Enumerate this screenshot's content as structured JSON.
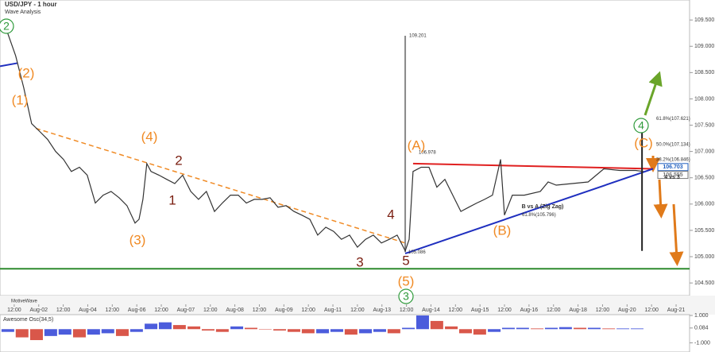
{
  "chart_data": {
    "type": "line",
    "title": "USD/JPY - 1 hour",
    "subtitle": "Wave Analysis",
    "footer": "MotiveWave",
    "xlim": [
      -0.58,
      27.55
    ],
    "xticks": [
      {
        "value": 0,
        "label": "12:00"
      },
      {
        "value": 1,
        "label": "Aug-02"
      },
      {
        "value": 2,
        "label": "12:00"
      },
      {
        "value": 3,
        "label": "Aug-04"
      },
      {
        "value": 4,
        "label": "12:00"
      },
      {
        "value": 5,
        "label": "Aug-06"
      },
      {
        "value": 6,
        "label": "12:00"
      },
      {
        "value": 7,
        "label": "Aug-07"
      },
      {
        "value": 8,
        "label": "12:00"
      },
      {
        "value": 9,
        "label": "Aug-08"
      },
      {
        "value": 10,
        "label": "12:00"
      },
      {
        "value": 11,
        "label": "Aug-09"
      },
      {
        "value": 12,
        "label": "12:00"
      },
      {
        "value": 13,
        "label": "Aug-11"
      },
      {
        "value": 14,
        "label": "12:00"
      },
      {
        "value": 15,
        "label": "Aug-13"
      },
      {
        "value": 16,
        "label": "12:00"
      },
      {
        "value": 17,
        "label": "Aug-14"
      },
      {
        "value": 18,
        "label": "12:00"
      },
      {
        "value": 19,
        "label": "Aug-15"
      },
      {
        "value": 20,
        "label": "12:00"
      },
      {
        "value": 21,
        "label": "Aug-16"
      },
      {
        "value": 22,
        "label": "12:00"
      },
      {
        "value": 23,
        "label": "Aug-18"
      },
      {
        "value": 24,
        "label": "12:00"
      },
      {
        "value": 25,
        "label": "Aug-20"
      },
      {
        "value": 26,
        "label": "12:00"
      },
      {
        "value": 27,
        "label": "Aug-21"
      }
    ],
    "ylim": [
      104.26,
      109.88
    ],
    "yticks": [
      {
        "value": 104.5,
        "label": "104.500"
      },
      {
        "value": 105,
        "label": "105.000"
      },
      {
        "value": 105.5,
        "label": "105.500"
      },
      {
        "value": 106,
        "label": "106.000"
      },
      {
        "value": 106.5,
        "label": "106.500"
      },
      {
        "value": 107,
        "label": "107.000"
      },
      {
        "value": 107.5,
        "label": "107.500"
      },
      {
        "value": 108,
        "label": "108.000"
      },
      {
        "value": 108.5,
        "label": "108.500"
      },
      {
        "value": 109,
        "label": "109.000"
      },
      {
        "value": 109.5,
        "label": "109.500"
      }
    ],
    "x": [
      -0.58,
      -0.26,
      0.06,
      0.39,
      0.71,
      1.04,
      1.36,
      1.69,
      2.01,
      2.33,
      2.66,
      2.98,
      3.31,
      3.63,
      3.95,
      4.28,
      4.6,
      4.93,
      5.09,
      5.25,
      5.41,
      5.58,
      5.9,
      6.22,
      6.55,
      6.87,
      7.2,
      7.52,
      7.84,
      8.17,
      8.49,
      8.82,
      9.14,
      9.47,
      9.79,
      10.11,
      10.44,
      10.76,
      11.09,
      11.41,
      11.73,
      12.06,
      12.38,
      12.71,
      13.03,
      13.35,
      13.68,
      14.0,
      14.33,
      14.65,
      14.98,
      15.3,
      15.62,
      15.95,
      16.11,
      16.27,
      16.6,
      16.92,
      17.24,
      17.57,
      17.89,
      18.22,
      18.54,
      18.87,
      19.19,
      19.51,
      19.84,
      20.0,
      20.32,
      20.81,
      21.46,
      21.78,
      22.11,
      22.76,
      23.41,
      24.05,
      24.7,
      25.35,
      25.67
    ],
    "series": [
      {
        "color": "#333333",
        "values": [
          109.42,
          109.24,
          108.82,
          108.21,
          107.53,
          107.38,
          107.23,
          107.0,
          106.85,
          106.62,
          106.7,
          106.55,
          106.02,
          106.17,
          106.24,
          106.12,
          105.97,
          105.64,
          105.71,
          106.09,
          106.77,
          106.62,
          106.55,
          106.47,
          106.39,
          106.55,
          106.24,
          106.09,
          106.24,
          105.86,
          106.02,
          106.17,
          106.17,
          106.02,
          106.09,
          106.09,
          106.12,
          105.94,
          105.97,
          105.86,
          105.79,
          105.71,
          105.41,
          105.56,
          105.48,
          105.33,
          105.41,
          105.18,
          105.33,
          105.41,
          105.26,
          105.33,
          105.41,
          105.11,
          105.33,
          106.62,
          106.7,
          106.7,
          106.32,
          106.47,
          106.17,
          105.86,
          105.94,
          106.02,
          106.09,
          106.17,
          106.85,
          105.79,
          106.17,
          106.17,
          106.24,
          106.42,
          106.36,
          106.39,
          106.42,
          106.67,
          106.64,
          106.64,
          106.62
        ]
      }
    ],
    "support": {
      "value": 104.77,
      "color": "#2e8b2e"
    },
    "trendlines": [
      {
        "color": "#e02020",
        "dash": false,
        "x": [
          16.27,
          26.06
        ],
        "y": [
          106.77,
          106.67
        ]
      },
      {
        "color": "#1f2fbf",
        "dash": false,
        "x": [
          15.95,
          26.06
        ],
        "y": [
          105.06,
          106.67
        ]
      },
      {
        "color": "#f08a24",
        "dash": true,
        "x": [
          0.88,
          15.95
        ],
        "y": [
          107.44,
          105.26
        ]
      },
      {
        "color": "#1f2fbf",
        "dash": false,
        "x": [
          -0.58,
          0.13
        ],
        "y": [
          108.62,
          108.68
        ]
      },
      {
        "color": "#888888",
        "dash": false,
        "x": [
          15.95,
          15.95
        ],
        "y": [
          109.201,
          105.086
        ]
      },
      {
        "color": "#222222",
        "dash": false,
        "x": [
          25.61,
          25.61
        ],
        "y": [
          107.62,
          105.11
        ]
      }
    ],
    "price_labels": [
      {
        "value": 106.703,
        "label": "106.703",
        "color": "#1f5fbf"
      },
      {
        "value": 106.555,
        "label": "106.555",
        "color": "#777777"
      }
    ],
    "level_labels": [
      {
        "value": 106.846,
        "label": "38.2%(106.846)"
      },
      {
        "value": 107.134,
        "label": "50.0%(107.134)"
      },
      {
        "value": 107.621,
        "label": "61.8%(107.621)"
      },
      {
        "value": 105.796,
        "label": "61.8%(105.796)"
      },
      {
        "value": 109.201,
        "label": "109.201"
      },
      {
        "value": 106.978,
        "label": "106.978"
      },
      {
        "value": 105.086,
        "label": "105.086"
      }
    ],
    "notes": [
      "4 vs 3",
      "B vs A (Zig Zag)"
    ],
    "annotations": [
      {
        "text": "2",
        "color": "#2e9a3a",
        "circled": true
      },
      {
        "text": "(2)",
        "color": "#f08a24",
        "circled": false
      },
      {
        "text": "(1)",
        "color": "#f08a24",
        "circled": false
      },
      {
        "text": "(4)",
        "color": "#f08a24",
        "circled": false
      },
      {
        "text": "2",
        "color": "#7a1e10",
        "circled": false
      },
      {
        "text": "1",
        "color": "#7a1e10",
        "circled": false
      },
      {
        "text": "(3)",
        "color": "#f08a24",
        "circled": false
      },
      {
        "text": "4",
        "color": "#7a1e10",
        "circled": false
      },
      {
        "text": "3",
        "color": "#7a1e10",
        "circled": false
      },
      {
        "text": "5",
        "color": "#7a1e10",
        "circled": false
      },
      {
        "text": "(5)",
        "color": "#f08a24",
        "circled": false
      },
      {
        "text": "3",
        "color": "#2e9a3a",
        "circled": true
      },
      {
        "text": "(A)",
        "color": "#f08a24",
        "circled": false
      },
      {
        "text": "(B)",
        "color": "#f08a24",
        "circled": false
      },
      {
        "text": "(C)",
        "color": "#f08a24",
        "circled": false
      },
      {
        "text": "4",
        "color": "#2e9a3a",
        "circled": true
      }
    ],
    "oscillator": {
      "title": "Awesome Osc(34,5)",
      "up_color": "#2b3fd6",
      "down_color": "#d23a2a",
      "ylim": [
        -1.67,
        1.06
      ],
      "yticks": [
        {
          "value": 1,
          "label": "1.000"
        },
        {
          "value": 0.084,
          "label": "0.084"
        },
        {
          "value": -1,
          "label": "-1.000"
        }
      ],
      "x": [
        -0.26,
        0.32,
        0.91,
        1.49,
        2.07,
        2.66,
        3.24,
        3.82,
        4.41,
        4.99,
        5.58,
        6.16,
        6.74,
        7.33,
        7.91,
        8.49,
        9.08,
        9.66,
        10.24,
        10.83,
        11.41,
        11.99,
        12.58,
        13.16,
        13.74,
        14.33,
        14.91,
        15.49,
        16.08,
        16.66,
        17.24,
        17.83,
        18.41,
        18.99,
        19.58,
        20.16,
        20.74,
        21.33,
        21.91,
        22.49,
        23.08,
        23.66,
        24.25,
        24.83,
        25.41
      ],
      "values": [
        -0.2,
        -0.6,
        -0.8,
        -0.5,
        -0.4,
        -0.6,
        -0.4,
        -0.3,
        -0.5,
        -0.2,
        0.4,
        0.5,
        0.3,
        0.2,
        -0.1,
        -0.2,
        0.2,
        0.1,
        0.0,
        -0.1,
        -0.2,
        -0.3,
        -0.3,
        -0.2,
        -0.4,
        -0.3,
        -0.2,
        -0.3,
        0.1,
        1.0,
        0.6,
        0.2,
        -0.3,
        -0.4,
        -0.2,
        0.1,
        0.1,
        0.05,
        0.1,
        0.15,
        0.1,
        0.1,
        0.05,
        0.05,
        0.05
      ]
    }
  }
}
